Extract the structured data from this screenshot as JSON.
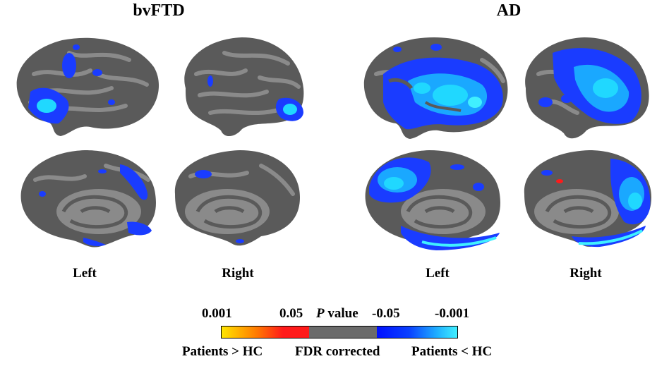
{
  "titles": {
    "bvftd": "bvFTD",
    "ad": "AD"
  },
  "hemisphere_labels": {
    "bvftd_left": "Left",
    "bvftd_right": "Right",
    "ad_left": "Left",
    "ad_right": "Right"
  },
  "legend": {
    "tick_0001": "0.001",
    "tick_005": "0.05",
    "pvalue_italic": "P",
    "pvalue_rest": " value",
    "tick_neg005": "-0.05",
    "tick_neg0001": "-0.001",
    "patients_gt_hc": "Patients > HC",
    "fdr_corrected": "FDR corrected",
    "patients_lt_hc": "Patients < HC",
    "colors": {
      "yellow": "#ffe600",
      "orange": "#ff7a00",
      "red": "#ff1a1a",
      "gray": "#6b6b6b",
      "blue": "#0010ff",
      "cyan": "#40f0ff"
    }
  },
  "colors": {
    "cortex_dark": "#5a5a5a",
    "cortex_light": "#8a8a8a",
    "blue": "#1a3cff",
    "cyan": "#20d8ff",
    "red": "#ff1a1a"
  }
}
